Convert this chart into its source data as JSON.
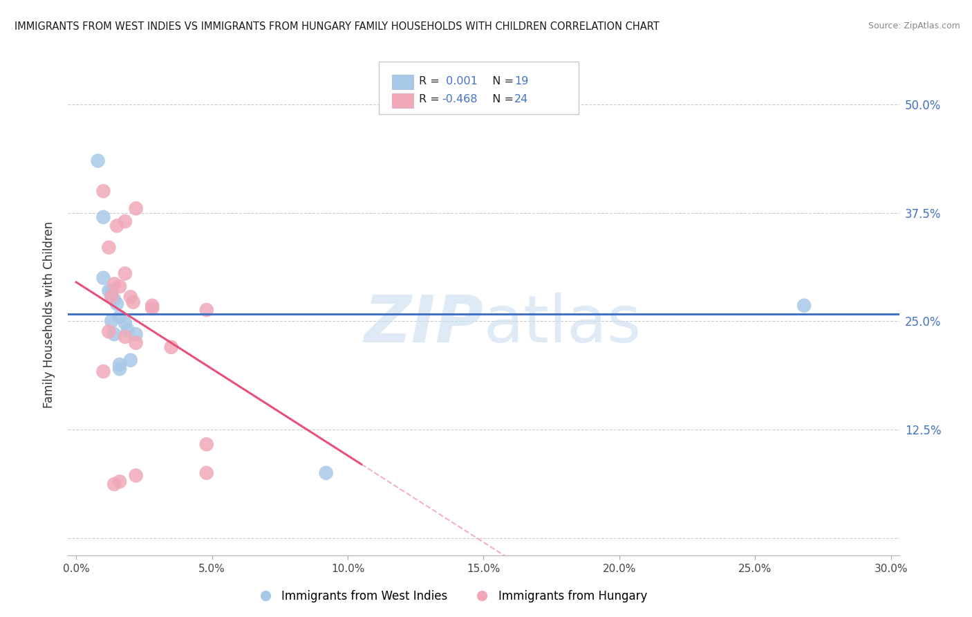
{
  "title": "IMMIGRANTS FROM WEST INDIES VS IMMIGRANTS FROM HUNGARY FAMILY HOUSEHOLDS WITH CHILDREN CORRELATION CHART",
  "source": "Source: ZipAtlas.com",
  "ylabel": "Family Households with Children",
  "ytick_vals": [
    0.0,
    0.125,
    0.25,
    0.375,
    0.5
  ],
  "ytick_labels": [
    "",
    "12.5%",
    "25.0%",
    "37.5%",
    "50.0%"
  ],
  "xtick_vals": [
    0.0,
    0.05,
    0.1,
    0.15,
    0.2,
    0.25,
    0.3
  ],
  "xtick_labels": [
    "0.0%",
    "5.0%",
    "10.0%",
    "15.0%",
    "20.0%",
    "25.0%",
    "30.0%"
  ],
  "xlim": [
    -0.003,
    0.303
  ],
  "ylim": [
    -0.02,
    0.535
  ],
  "color_blue": "#a8c8e8",
  "color_pink": "#f0a8b8",
  "line_blue": "#4472c4",
  "line_pink": "#e8507a",
  "watermark_color": "#c8dff0",
  "legend_blue_label": "Immigrants from West Indies",
  "legend_pink_label": "Immigrants from Hungary",
  "blue_x": [
    0.008,
    0.01,
    0.012,
    0.013,
    0.013,
    0.014,
    0.014,
    0.015,
    0.016,
    0.016,
    0.018,
    0.019,
    0.02,
    0.022,
    0.013,
    0.016,
    0.268,
    0.092,
    0.01
  ],
  "blue_y": [
    0.435,
    0.3,
    0.285,
    0.285,
    0.28,
    0.275,
    0.235,
    0.27,
    0.255,
    0.2,
    0.248,
    0.24,
    0.205,
    0.235,
    0.25,
    0.195,
    0.268,
    0.075,
    0.37
  ],
  "pink_x": [
    0.01,
    0.022,
    0.018,
    0.012,
    0.015,
    0.018,
    0.014,
    0.016,
    0.02,
    0.013,
    0.021,
    0.028,
    0.028,
    0.048,
    0.012,
    0.018,
    0.022,
    0.035,
    0.01,
    0.048,
    0.048,
    0.022,
    0.014,
    0.016
  ],
  "pink_y": [
    0.4,
    0.38,
    0.365,
    0.335,
    0.36,
    0.305,
    0.293,
    0.29,
    0.278,
    0.278,
    0.272,
    0.268,
    0.265,
    0.263,
    0.238,
    0.232,
    0.225,
    0.22,
    0.192,
    0.108,
    0.075,
    0.072,
    0.062,
    0.065
  ],
  "blue_line_x": [
    0.0,
    0.303
  ],
  "blue_line_y": [
    0.247,
    0.247
  ],
  "pink_line_x0": 0.0,
  "pink_line_x1": 0.105,
  "pink_line_xdash1": 0.105,
  "pink_line_xdash2": 0.303,
  "pink_slope": -2.0,
  "pink_intercept": 0.295
}
